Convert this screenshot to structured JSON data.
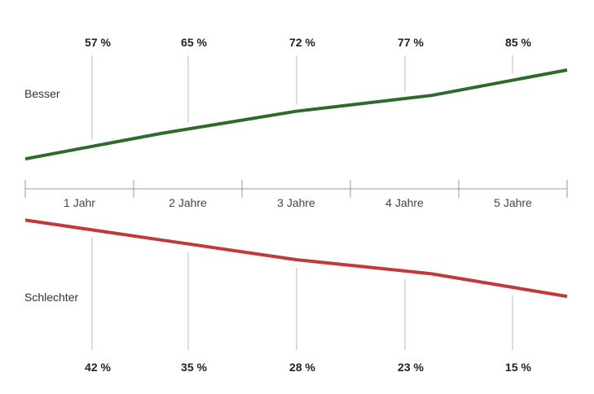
{
  "chart_data": {
    "type": "line",
    "categories": [
      "1 Jahr",
      "2 Jahre",
      "3 Jahre",
      "4 Jahre",
      "5 Jahre"
    ],
    "series": [
      {
        "name": "Besser",
        "values": [
          57,
          65,
          72,
          77,
          85
        ],
        "labels": [
          "57 %",
          "65 %",
          "72 %",
          "77 %",
          "85 %"
        ],
        "color": "#2e6a2e"
      },
      {
        "name": "Schlechter",
        "values": [
          42,
          35,
          28,
          23,
          15
        ],
        "labels": [
          "42 %",
          "35 %",
          "28 %",
          "23 %",
          "15 %"
        ],
        "color": "#c0393b"
      }
    ],
    "title": "",
    "xlabel": "",
    "ylabel": "",
    "ylim": [
      0,
      100
    ],
    "grid": false,
    "legend": "left-inline"
  }
}
